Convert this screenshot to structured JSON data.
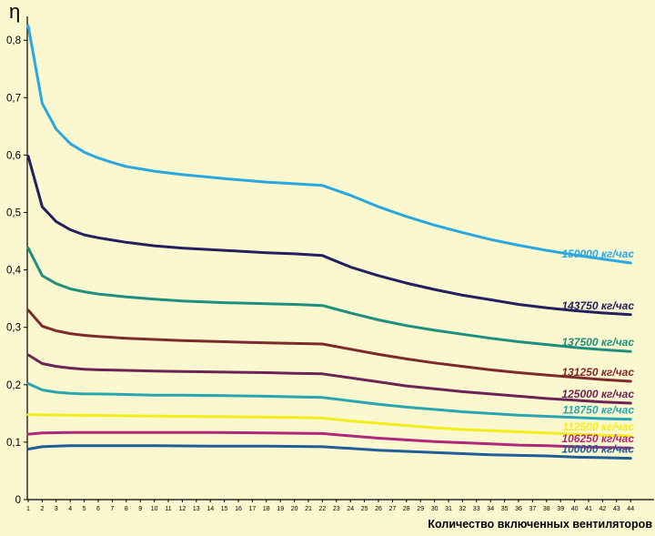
{
  "chart_data": {
    "type": "line",
    "ylabel": "η",
    "xlabel": "Количество включенных вентиляторов",
    "xlim": [
      1,
      44
    ],
    "ylim": [
      0,
      0.85
    ],
    "yticks": [
      "0",
      "0,1",
      "0,2",
      "0,3",
      "0,4",
      "0,5",
      "0,6",
      "0,7",
      "0,8"
    ],
    "ytick_values": [
      0,
      0.1,
      0.2,
      0.3,
      0.4,
      0.5,
      0.6,
      0.7,
      0.8
    ],
    "xticks": [
      "1",
      "2",
      "3",
      "4",
      "5",
      "6",
      "7",
      "8",
      "9",
      "10",
      "11",
      "12",
      "13",
      "14",
      "15",
      "16",
      "17",
      "18",
      "19",
      "20",
      "21",
      "22",
      "23",
      "24",
      "25",
      "26",
      "27",
      "28",
      "29",
      "30",
      "31",
      "32",
      "33",
      "34",
      "35",
      "36",
      "37",
      "38",
      "39",
      "40",
      "41",
      "42",
      "43",
      "44"
    ],
    "grid": false,
    "series": [
      {
        "name": "150000 кг/час",
        "color": "#2aa7e0",
        "x": [
          1,
          2,
          3,
          4,
          5,
          6,
          7,
          8,
          10,
          12,
          15,
          18,
          20,
          22,
          24,
          26,
          28,
          30,
          32,
          34,
          36,
          38,
          40,
          42,
          44
        ],
        "y": [
          0.825,
          0.69,
          0.645,
          0.62,
          0.605,
          0.595,
          0.587,
          0.58,
          0.572,
          0.566,
          0.559,
          0.553,
          0.55,
          0.547,
          0.53,
          0.51,
          0.493,
          0.478,
          0.465,
          0.453,
          0.443,
          0.434,
          0.426,
          0.419,
          0.412
        ]
      },
      {
        "name": "143750 кг/час",
        "color": "#23205f",
        "x": [
          1,
          2,
          3,
          4,
          5,
          6,
          8,
          10,
          12,
          15,
          18,
          20,
          22,
          24,
          26,
          28,
          30,
          32,
          34,
          36,
          38,
          40,
          42,
          44
        ],
        "y": [
          0.598,
          0.51,
          0.484,
          0.47,
          0.461,
          0.456,
          0.448,
          0.442,
          0.438,
          0.434,
          0.43,
          0.428,
          0.425,
          0.405,
          0.39,
          0.377,
          0.366,
          0.356,
          0.348,
          0.34,
          0.334,
          0.329,
          0.325,
          0.322
        ]
      },
      {
        "name": "137500 кг/час",
        "color": "#1e8e7e",
        "x": [
          1,
          2,
          3,
          4,
          5,
          6,
          8,
          10,
          12,
          15,
          18,
          20,
          22,
          24,
          26,
          28,
          30,
          32,
          34,
          36,
          38,
          40,
          42,
          44
        ],
        "y": [
          0.438,
          0.39,
          0.376,
          0.367,
          0.362,
          0.358,
          0.353,
          0.349,
          0.346,
          0.343,
          0.341,
          0.34,
          0.338,
          0.325,
          0.313,
          0.303,
          0.295,
          0.288,
          0.281,
          0.275,
          0.27,
          0.265,
          0.261,
          0.258
        ]
      },
      {
        "name": "131250 кг/час",
        "color": "#7d2a2e",
        "x": [
          1,
          2,
          3,
          4,
          5,
          6,
          8,
          10,
          12,
          15,
          18,
          20,
          22,
          24,
          26,
          28,
          30,
          32,
          34,
          36,
          38,
          40,
          42,
          44
        ],
        "y": [
          0.33,
          0.302,
          0.294,
          0.289,
          0.286,
          0.284,
          0.281,
          0.279,
          0.277,
          0.275,
          0.273,
          0.272,
          0.271,
          0.262,
          0.253,
          0.245,
          0.238,
          0.232,
          0.226,
          0.221,
          0.217,
          0.213,
          0.209,
          0.206
        ]
      },
      {
        "name": "125000 кг/час",
        "color": "#6b2454",
        "x": [
          1,
          2,
          3,
          4,
          5,
          6,
          8,
          10,
          12,
          15,
          18,
          20,
          22,
          24,
          26,
          28,
          30,
          32,
          34,
          36,
          38,
          40,
          42,
          44
        ],
        "y": [
          0.252,
          0.237,
          0.232,
          0.229,
          0.227,
          0.226,
          0.225,
          0.224,
          0.223,
          0.222,
          0.221,
          0.22,
          0.219,
          0.212,
          0.205,
          0.198,
          0.193,
          0.188,
          0.184,
          0.18,
          0.176,
          0.173,
          0.17,
          0.168
        ]
      },
      {
        "name": "118750 кг/час",
        "color": "#2aa6b0",
        "x": [
          1,
          2,
          3,
          4,
          5,
          6,
          8,
          10,
          12,
          15,
          18,
          20,
          22,
          24,
          26,
          28,
          30,
          32,
          34,
          36,
          38,
          40,
          42,
          44
        ],
        "y": [
          0.202,
          0.191,
          0.187,
          0.185,
          0.184,
          0.184,
          0.183,
          0.182,
          0.182,
          0.181,
          0.18,
          0.179,
          0.178,
          0.172,
          0.166,
          0.161,
          0.157,
          0.153,
          0.15,
          0.147,
          0.145,
          0.143,
          0.141,
          0.14
        ]
      },
      {
        "name": "112500 кг/час",
        "color": "#f2ee1a",
        "x": [
          1,
          4,
          8,
          12,
          16,
          20,
          22,
          24,
          26,
          28,
          30,
          32,
          34,
          36,
          38,
          40,
          42,
          44
        ],
        "y": [
          0.148,
          0.147,
          0.146,
          0.145,
          0.144,
          0.143,
          0.142,
          0.137,
          0.133,
          0.129,
          0.125,
          0.122,
          0.12,
          0.118,
          0.116,
          0.114,
          0.112,
          0.111
        ]
      },
      {
        "name": "106250 кг/час",
        "color": "#b0287a",
        "x": [
          1,
          2,
          4,
          6,
          10,
          14,
          18,
          22,
          24,
          26,
          28,
          30,
          32,
          34,
          36,
          38,
          40,
          42,
          44
        ],
        "y": [
          0.114,
          0.116,
          0.117,
          0.117,
          0.117,
          0.117,
          0.116,
          0.115,
          0.111,
          0.107,
          0.104,
          0.101,
          0.099,
          0.097,
          0.095,
          0.094,
          0.092,
          0.091,
          0.09
        ]
      },
      {
        "name": "100000 кг/час",
        "color": "#1f5e97",
        "x": [
          1,
          2,
          3,
          4,
          6,
          10,
          14,
          18,
          22,
          24,
          26,
          28,
          30,
          32,
          34,
          36,
          38,
          40,
          42,
          44
        ],
        "y": [
          0.088,
          0.092,
          0.093,
          0.094,
          0.094,
          0.094,
          0.093,
          0.093,
          0.092,
          0.089,
          0.086,
          0.084,
          0.082,
          0.08,
          0.078,
          0.077,
          0.076,
          0.074,
          0.073,
          0.072
        ]
      }
    ]
  }
}
